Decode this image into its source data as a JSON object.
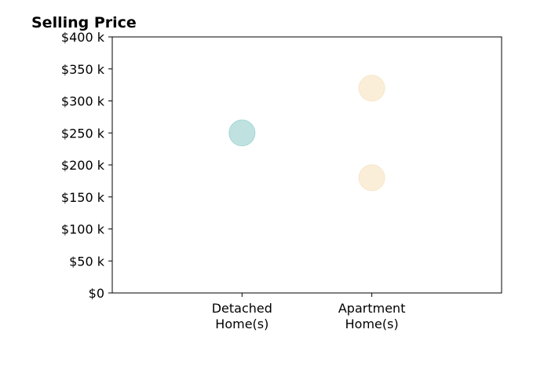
{
  "chart_data": {
    "type": "scatter",
    "title": "Selling Price",
    "xlabel": "",
    "ylabel": "",
    "categories": [
      "Detached\nHome(s)",
      "Apartment\nHome(s)"
    ],
    "x_range": [
      -1,
      2
    ],
    "ylim": [
      0,
      400000
    ],
    "y_ticks": [
      {
        "value": 0,
        "label": "$0"
      },
      {
        "value": 50000,
        "label": "$50 k"
      },
      {
        "value": 100000,
        "label": "$100 k"
      },
      {
        "value": 150000,
        "label": "$150 k"
      },
      {
        "value": 200000,
        "label": "$200 k"
      },
      {
        "value": 250000,
        "label": "$250 k"
      },
      {
        "value": 300000,
        "label": "$300 k"
      },
      {
        "value": 350000,
        "label": "$350 k"
      },
      {
        "value": 400000,
        "label": "$400 k"
      }
    ],
    "points": [
      {
        "category": "Detached\nHome(s)",
        "y": 250000,
        "color": "#7fc6c2"
      },
      {
        "category": "Apartment\nHome(s)",
        "y": 320000,
        "color": "#f5deb3"
      },
      {
        "category": "Apartment\nHome(s)",
        "y": 180000,
        "color": "#f5deb3"
      }
    ],
    "grid": false,
    "legend": "none"
  }
}
